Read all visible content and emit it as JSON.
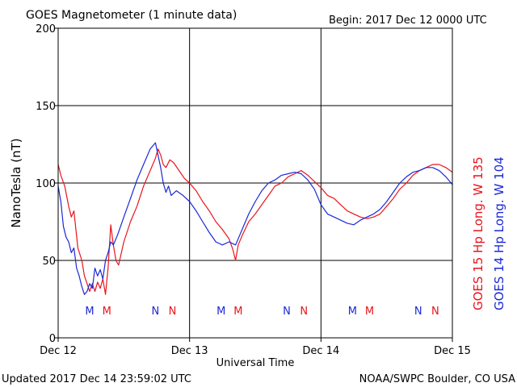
{
  "header": {
    "title": "GOES Magnetometer (1 minute data)",
    "begin": "Begin:  2017 Dec 12 0000 UTC"
  },
  "footer": {
    "updated": "Updated 2017 Dec 14 23:59:02 UTC",
    "source": "NOAA/SWPC Boulder, CO USA"
  },
  "colors": {
    "goes15": "#e8141c",
    "goes14": "#1a28d8",
    "grid": "#000000"
  },
  "chart_data": {
    "type": "line",
    "title": "GOES Magnetometer (1 minute data)",
    "xlabel": "Universal Time",
    "ylabel": "NanoTesla (nT)",
    "x_unit": "days since 2017 Dec 12 0000 UTC",
    "xlim": [
      0,
      3
    ],
    "ylim": [
      0,
      200
    ],
    "yticks": [
      0,
      50,
      100,
      150,
      200
    ],
    "xticks": [
      {
        "x": 0,
        "label": "Dec 12"
      },
      {
        "x": 1,
        "label": "Dec 13"
      },
      {
        "x": 2,
        "label": "Dec 14"
      },
      {
        "x": 3,
        "label": "Dec 15"
      }
    ],
    "grid": true,
    "legend": [
      {
        "label": "GOES 15 Hp  Long. W 135",
        "color": "#e8141c"
      },
      {
        "label": "GOES 14 Hp  Long. W 104",
        "color": "#1a28d8"
      }
    ],
    "markers": [
      {
        "x": 0.24,
        "label": "M",
        "series": "GOES 14"
      },
      {
        "x": 0.37,
        "label": "M",
        "series": "GOES 15"
      },
      {
        "x": 0.74,
        "label": "N",
        "series": "GOES 14"
      },
      {
        "x": 0.87,
        "label": "N",
        "series": "GOES 15"
      },
      {
        "x": 1.24,
        "label": "M",
        "series": "GOES 14"
      },
      {
        "x": 1.37,
        "label": "M",
        "series": "GOES 15"
      },
      {
        "x": 1.74,
        "label": "N",
        "series": "GOES 14"
      },
      {
        "x": 1.87,
        "label": "N",
        "series": "GOES 15"
      },
      {
        "x": 2.24,
        "label": "M",
        "series": "GOES 14"
      },
      {
        "x": 2.37,
        "label": "M",
        "series": "GOES 15"
      },
      {
        "x": 2.74,
        "label": "N",
        "series": "GOES 14"
      },
      {
        "x": 2.87,
        "label": "N",
        "series": "GOES 15"
      }
    ],
    "series": [
      {
        "name": "GOES 15 Hp  Long. W 135",
        "color": "#e8141c",
        "x": [
          0,
          0.02,
          0.05,
          0.08,
          0.1,
          0.12,
          0.15,
          0.18,
          0.2,
          0.22,
          0.24,
          0.26,
          0.28,
          0.3,
          0.32,
          0.34,
          0.36,
          0.38,
          0.4,
          0.42,
          0.44,
          0.46,
          0.5,
          0.55,
          0.6,
          0.65,
          0.7,
          0.74,
          0.76,
          0.78,
          0.8,
          0.82,
          0.85,
          0.88,
          0.92,
          0.96,
          1.0,
          1.05,
          1.1,
          1.15,
          1.2,
          1.25,
          1.3,
          1.33,
          1.35,
          1.37,
          1.4,
          1.45,
          1.5,
          1.55,
          1.6,
          1.65,
          1.7,
          1.75,
          1.8,
          1.85,
          1.9,
          1.95,
          2.0,
          2.05,
          2.1,
          2.15,
          2.2,
          2.25,
          2.3,
          2.35,
          2.4,
          2.45,
          2.5,
          2.55,
          2.6,
          2.65,
          2.7,
          2.75,
          2.8,
          2.85,
          2.9,
          2.95,
          3.0
        ],
        "y": [
          112,
          105,
          98,
          85,
          78,
          82,
          58,
          50,
          40,
          35,
          30,
          35,
          30,
          36,
          32,
          38,
          28,
          45,
          73,
          60,
          50,
          47,
          62,
          75,
          85,
          98,
          108,
          116,
          122,
          118,
          112,
          110,
          115,
          113,
          108,
          103,
          100,
          95,
          88,
          82,
          75,
          70,
          64,
          57,
          50,
          60,
          66,
          75,
          80,
          86,
          92,
          98,
          100,
          104,
          106,
          108,
          105,
          101,
          97,
          92,
          90,
          86,
          82,
          80,
          78,
          77,
          78,
          80,
          85,
          90,
          96,
          100,
          105,
          108,
          110,
          112,
          112,
          110,
          107
        ]
      },
      {
        "name": "GOES 14 Hp  Long. W 104",
        "color": "#1a28d8",
        "x": [
          0,
          0.02,
          0.04,
          0.06,
          0.08,
          0.1,
          0.12,
          0.14,
          0.16,
          0.18,
          0.2,
          0.22,
          0.24,
          0.26,
          0.28,
          0.3,
          0.32,
          0.34,
          0.36,
          0.38,
          0.4,
          0.42,
          0.45,
          0.5,
          0.55,
          0.6,
          0.65,
          0.7,
          0.74,
          0.76,
          0.78,
          0.8,
          0.82,
          0.84,
          0.86,
          0.9,
          0.95,
          1.0,
          1.05,
          1.1,
          1.15,
          1.2,
          1.25,
          1.3,
          1.35,
          1.38,
          1.4,
          1.45,
          1.5,
          1.55,
          1.6,
          1.65,
          1.7,
          1.75,
          1.8,
          1.85,
          1.9,
          1.95,
          2.0,
          2.05,
          2.1,
          2.15,
          2.2,
          2.25,
          2.3,
          2.35,
          2.4,
          2.45,
          2.5,
          2.55,
          2.6,
          2.65,
          2.7,
          2.75,
          2.8,
          2.85,
          2.9,
          2.95,
          3.0
        ],
        "y": [
          98,
          88,
          72,
          65,
          62,
          55,
          58,
          45,
          40,
          33,
          28,
          30,
          35,
          32,
          45,
          40,
          44,
          38,
          50,
          55,
          62,
          60,
          66,
          78,
          90,
          102,
          112,
          122,
          126,
          118,
          110,
          100,
          94,
          98,
          92,
          95,
          92,
          88,
          82,
          75,
          68,
          62,
          60,
          62,
          60,
          66,
          70,
          80,
          88,
          95,
          100,
          102,
          105,
          106,
          107,
          106,
          102,
          96,
          86,
          80,
          78,
          76,
          74,
          73,
          76,
          78,
          80,
          83,
          88,
          94,
          100,
          104,
          107,
          108,
          110,
          110,
          108,
          104,
          99
        ]
      }
    ]
  }
}
